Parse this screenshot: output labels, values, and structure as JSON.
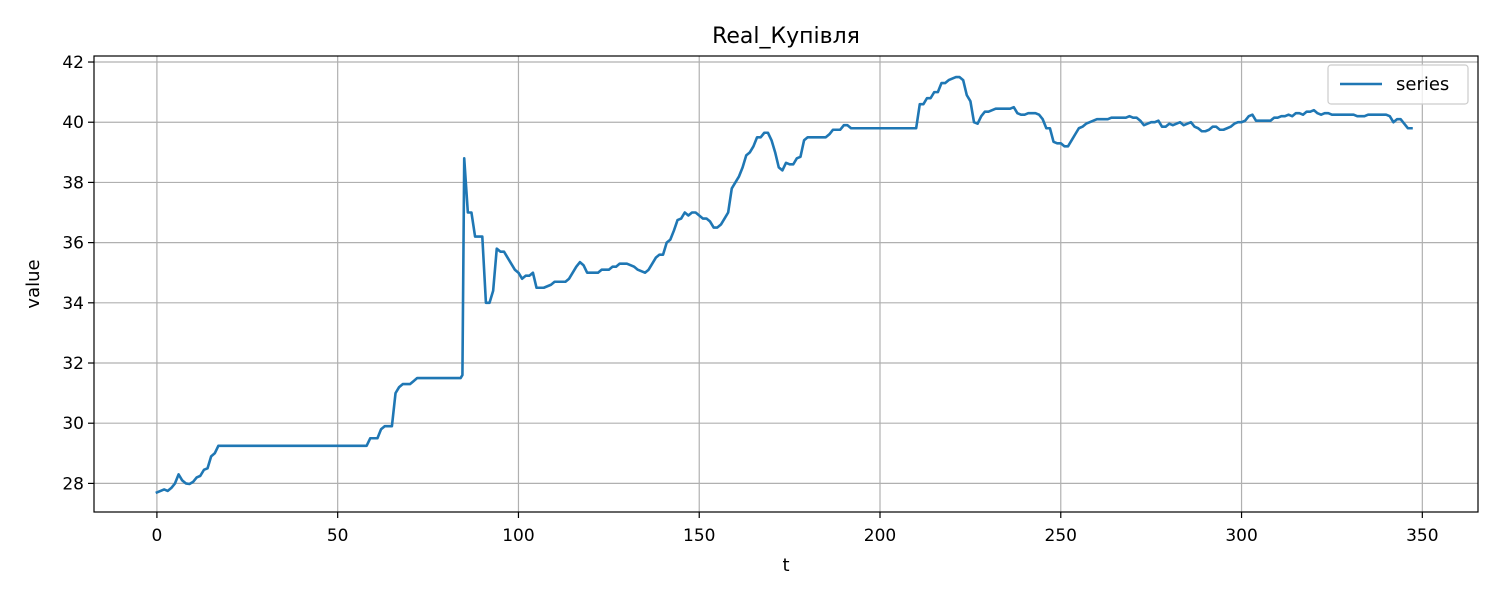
{
  "chart_data": {
    "type": "line",
    "title": "Real_Купівля",
    "xlabel": "t",
    "ylabel": "value",
    "xlim": [
      -17.4,
      365.4
    ],
    "ylim": [
      27.05,
      42.2
    ],
    "xticks": [
      0,
      50,
      100,
      150,
      200,
      250,
      300,
      350
    ],
    "yticks": [
      28,
      30,
      32,
      34,
      36,
      38,
      40,
      42
    ],
    "grid": true,
    "legend_position": "top-right",
    "series": [
      {
        "name": "series",
        "color": "#1f77b4",
        "points": [
          [
            0,
            27.7
          ],
          [
            2,
            27.8
          ],
          [
            3,
            27.75
          ],
          [
            4,
            27.85
          ],
          [
            5,
            28.0
          ],
          [
            6,
            28.3
          ],
          [
            7,
            28.1
          ],
          [
            8,
            28.0
          ],
          [
            9,
            27.98
          ],
          [
            10,
            28.05
          ],
          [
            11,
            28.2
          ],
          [
            12,
            28.25
          ],
          [
            13,
            28.45
          ],
          [
            14,
            28.5
          ],
          [
            15,
            28.9
          ],
          [
            16,
            29.0
          ],
          [
            17,
            29.25
          ],
          [
            58,
            29.25
          ],
          [
            59,
            29.5
          ],
          [
            61,
            29.5
          ],
          [
            62,
            29.8
          ],
          [
            63,
            29.9
          ],
          [
            65,
            29.9
          ],
          [
            66,
            31.0
          ],
          [
            67,
            31.2
          ],
          [
            68,
            31.3
          ],
          [
            70,
            31.3
          ],
          [
            71,
            31.4
          ],
          [
            72,
            31.5
          ],
          [
            84,
            31.5
          ],
          [
            84.5,
            31.6
          ],
          [
            85,
            38.8
          ],
          [
            86,
            37.0
          ],
          [
            87,
            37.0
          ],
          [
            88,
            36.2
          ],
          [
            90,
            36.2
          ],
          [
            91,
            34.0
          ],
          [
            92,
            34.0
          ],
          [
            93,
            34.4
          ],
          [
            94,
            35.8
          ],
          [
            95,
            35.7
          ],
          [
            96,
            35.7
          ],
          [
            97,
            35.5
          ],
          [
            98,
            35.3
          ],
          [
            99,
            35.1
          ],
          [
            100,
            35.0
          ],
          [
            101,
            34.8
          ],
          [
            102,
            34.9
          ],
          [
            103,
            34.9
          ],
          [
            104,
            35.0
          ],
          [
            105,
            34.5
          ],
          [
            107,
            34.5
          ],
          [
            108,
            34.55
          ],
          [
            109,
            34.6
          ],
          [
            110,
            34.7
          ],
          [
            113,
            34.7
          ],
          [
            114,
            34.8
          ],
          [
            115,
            35.0
          ],
          [
            116,
            35.2
          ],
          [
            117,
            35.35
          ],
          [
            118,
            35.25
          ],
          [
            119,
            35.0
          ],
          [
            122,
            35.0
          ],
          [
            123,
            35.1
          ],
          [
            125,
            35.1
          ],
          [
            126,
            35.2
          ],
          [
            127,
            35.2
          ],
          [
            128,
            35.3
          ],
          [
            130,
            35.3
          ],
          [
            131,
            35.25
          ],
          [
            132,
            35.2
          ],
          [
            133,
            35.1
          ],
          [
            134,
            35.05
          ],
          [
            135,
            35.0
          ],
          [
            136,
            35.1
          ],
          [
            137,
            35.3
          ],
          [
            138,
            35.5
          ],
          [
            139,
            35.6
          ],
          [
            140,
            35.6
          ],
          [
            141,
            36.0
          ],
          [
            142,
            36.1
          ],
          [
            143,
            36.4
          ],
          [
            144,
            36.75
          ],
          [
            145,
            36.8
          ],
          [
            146,
            37.0
          ],
          [
            147,
            36.9
          ],
          [
            148,
            37.0
          ],
          [
            149,
            37.0
          ],
          [
            150,
            36.9
          ],
          [
            151,
            36.8
          ],
          [
            152,
            36.8
          ],
          [
            153,
            36.7
          ],
          [
            154,
            36.5
          ],
          [
            155,
            36.5
          ],
          [
            156,
            36.6
          ],
          [
            157,
            36.8
          ],
          [
            158,
            37.0
          ],
          [
            159,
            37.8
          ],
          [
            160,
            38.0
          ],
          [
            161,
            38.2
          ],
          [
            162,
            38.5
          ],
          [
            163,
            38.9
          ],
          [
            164,
            39.0
          ],
          [
            165,
            39.2
          ],
          [
            166,
            39.5
          ],
          [
            167,
            39.5
          ],
          [
            168,
            39.65
          ],
          [
            169,
            39.65
          ],
          [
            170,
            39.4
          ],
          [
            171,
            39.0
          ],
          [
            172,
            38.5
          ],
          [
            173,
            38.4
          ],
          [
            174,
            38.65
          ],
          [
            175,
            38.6
          ],
          [
            176,
            38.6
          ],
          [
            177,
            38.8
          ],
          [
            178,
            38.85
          ],
          [
            179,
            39.4
          ],
          [
            180,
            39.5
          ],
          [
            185,
            39.5
          ],
          [
            186,
            39.6
          ],
          [
            187,
            39.75
          ],
          [
            189,
            39.75
          ],
          [
            190,
            39.9
          ],
          [
            191,
            39.9
          ],
          [
            192,
            39.8
          ],
          [
            210,
            39.8
          ],
          [
            211,
            40.6
          ],
          [
            212,
            40.6
          ],
          [
            213,
            40.8
          ],
          [
            214,
            40.8
          ],
          [
            215,
            41.0
          ],
          [
            216,
            41.0
          ],
          [
            217,
            41.3
          ],
          [
            218,
            41.3
          ],
          [
            219,
            41.4
          ],
          [
            220,
            41.45
          ],
          [
            221,
            41.5
          ],
          [
            222,
            41.5
          ],
          [
            223,
            41.4
          ],
          [
            224,
            40.9
          ],
          [
            225,
            40.7
          ],
          [
            226,
            40.0
          ],
          [
            227,
            39.95
          ],
          [
            228,
            40.2
          ],
          [
            229,
            40.35
          ],
          [
            230,
            40.35
          ],
          [
            231,
            40.4
          ],
          [
            232,
            40.45
          ],
          [
            236,
            40.45
          ],
          [
            237,
            40.5
          ],
          [
            238,
            40.3
          ],
          [
            239,
            40.25
          ],
          [
            240,
            40.25
          ],
          [
            241,
            40.3
          ],
          [
            243,
            40.3
          ],
          [
            244,
            40.25
          ],
          [
            245,
            40.1
          ],
          [
            246,
            39.8
          ],
          [
            247,
            39.8
          ],
          [
            248,
            39.35
          ],
          [
            249,
            39.3
          ],
          [
            250,
            39.3
          ],
          [
            251,
            39.2
          ],
          [
            252,
            39.2
          ],
          [
            253,
            39.4
          ],
          [
            254,
            39.6
          ],
          [
            255,
            39.8
          ],
          [
            256,
            39.85
          ],
          [
            257,
            39.95
          ],
          [
            258,
            40.0
          ],
          [
            259,
            40.05
          ],
          [
            260,
            40.1
          ],
          [
            263,
            40.1
          ],
          [
            264,
            40.15
          ],
          [
            268,
            40.15
          ],
          [
            269,
            40.2
          ],
          [
            270,
            40.15
          ],
          [
            271,
            40.15
          ],
          [
            272,
            40.05
          ],
          [
            273,
            39.9
          ],
          [
            274,
            39.95
          ],
          [
            275,
            40.0
          ],
          [
            276,
            40.0
          ],
          [
            277,
            40.05
          ],
          [
            278,
            39.85
          ],
          [
            279,
            39.85
          ],
          [
            280,
            39.95
          ],
          [
            281,
            39.9
          ],
          [
            282,
            39.95
          ],
          [
            283,
            40.0
          ],
          [
            284,
            39.9
          ],
          [
            285,
            39.95
          ],
          [
            286,
            40.0
          ],
          [
            287,
            39.85
          ],
          [
            288,
            39.8
          ],
          [
            289,
            39.7
          ],
          [
            290,
            39.7
          ],
          [
            291,
            39.75
          ],
          [
            292,
            39.85
          ],
          [
            293,
            39.85
          ],
          [
            294,
            39.75
          ],
          [
            295,
            39.75
          ],
          [
            296,
            39.8
          ],
          [
            297,
            39.85
          ],
          [
            298,
            39.95
          ],
          [
            299,
            40.0
          ],
          [
            300,
            40.0
          ],
          [
            301,
            40.05
          ],
          [
            302,
            40.2
          ],
          [
            303,
            40.25
          ],
          [
            304,
            40.05
          ],
          [
            308,
            40.05
          ],
          [
            309,
            40.15
          ],
          [
            310,
            40.15
          ],
          [
            311,
            40.2
          ],
          [
            312,
            40.2
          ],
          [
            313,
            40.25
          ],
          [
            314,
            40.2
          ],
          [
            315,
            40.3
          ],
          [
            316,
            40.3
          ],
          [
            317,
            40.25
          ],
          [
            318,
            40.35
          ],
          [
            319,
            40.35
          ],
          [
            320,
            40.4
          ],
          [
            321,
            40.3
          ],
          [
            322,
            40.25
          ],
          [
            323,
            40.3
          ],
          [
            324,
            40.3
          ],
          [
            325,
            40.25
          ],
          [
            331,
            40.25
          ],
          [
            332,
            40.2
          ],
          [
            333,
            40.2
          ],
          [
            334,
            40.2
          ],
          [
            335,
            40.25
          ],
          [
            340,
            40.25
          ],
          [
            341,
            40.2
          ],
          [
            342,
            40.0
          ],
          [
            343,
            40.1
          ],
          [
            344,
            40.1
          ],
          [
            345,
            39.95
          ],
          [
            346,
            39.8
          ],
          [
            347,
            39.8
          ]
        ]
      }
    ]
  }
}
